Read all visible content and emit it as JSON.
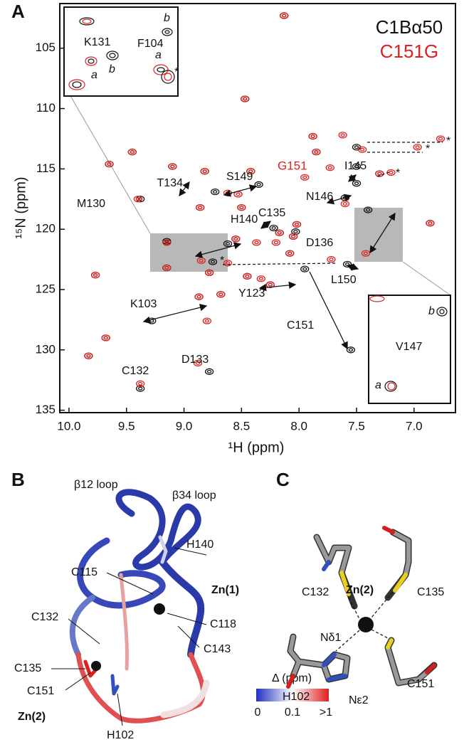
{
  "panels": {
    "a": "A",
    "b": "B",
    "c": "C"
  },
  "chart_data": {
    "type": "scatter",
    "xlabel": "¹H (ppm)",
    "ylabel": "¹⁵N (ppm)",
    "xlim": [
      10.08,
      6.64
    ],
    "ylim": [
      101.3,
      135.2
    ],
    "xticks": [
      {
        "value": 10,
        "label": "10.0"
      },
      9.5,
      {
        "value": 9,
        "label": "9.0"
      },
      8.5,
      {
        "value": 8,
        "label": "8.0"
      },
      7.5,
      {
        "value": 7,
        "label": "7.0"
      }
    ],
    "yticks": [
      105,
      110,
      115,
      120,
      125,
      130,
      135
    ],
    "series": [
      {
        "name": "C1Bα50",
        "color": "#111111",
        "x": [
          9.83,
          9.77,
          9.68,
          9.65,
          9.45,
          9.38,
          9.38,
          9.15,
          9.1,
          9.15,
          8.78,
          8.87,
          8.86,
          8.62,
          8.82,
          9.28,
          8.78,
          8.68,
          8.73,
          8.75,
          8.55,
          8.35,
          8.5,
          8.47,
          8.45,
          8.42,
          8.22,
          7.95,
          8.25,
          8.03,
          8.17,
          8.13,
          8.08,
          8.05,
          8.02,
          7.88,
          7.85,
          7.6,
          7.58,
          7.55,
          7.5,
          7.5,
          7.5,
          7.4,
          7.3,
          6.86
        ],
        "values": [
          130.5,
          123.8,
          129.0,
          114.6,
          113.6,
          117.5,
          133.2,
          121.0,
          114.8,
          123.2,
          131.8,
          125.6,
          118.2,
          121.2,
          115.2,
          127.6,
          123.6,
          125.4,
          116.9,
          122.7,
          120.8,
          116.3,
          118.2,
          109.2,
          123.9,
          115.2,
          119.9,
          123.3,
          124.6,
          120.2,
          120.3,
          102.3,
          122.0,
          120.6,
          119.6,
          112.3,
          113.6,
          117.4,
          122.9,
          130.0,
          113.2,
          114.8,
          116.2,
          118.4,
          115.4,
          119.5
        ]
      },
      {
        "name": "C151G",
        "color": "#e02020",
        "x": [
          9.83,
          9.77,
          9.68,
          9.65,
          9.45,
          9.4,
          9.38,
          9.15,
          9.1,
          9.15,
          8.88,
          8.87,
          8.86,
          8.85,
          8.82,
          8.8,
          8.78,
          8.68,
          8.62,
          8.62,
          8.55,
          8.53,
          8.5,
          8.47,
          8.45,
          8.42,
          8.37,
          8.33,
          8.25,
          8.2,
          8.17,
          8.13,
          8.08,
          8.05,
          8.02,
          7.95,
          7.88,
          7.85,
          7.73,
          7.72,
          7.62,
          7.6,
          7.45,
          7.42,
          7.3,
          7.2,
          6.97,
          6.86,
          6.77
        ],
        "values": [
          130.5,
          123.8,
          129.0,
          114.6,
          113.6,
          117.5,
          132.8,
          121.1,
          114.8,
          123.2,
          131.1,
          125.6,
          118.2,
          122.6,
          115.2,
          127.6,
          123.6,
          125.4,
          117.0,
          122.8,
          120.8,
          117.1,
          118.2,
          109.2,
          123.9,
          115.2,
          121.1,
          124.1,
          124.6,
          121.1,
          120.3,
          102.3,
          122.0,
          120.6,
          119.6,
          115.7,
          112.3,
          113.6,
          114.9,
          122.5,
          112.2,
          117.9,
          113.4,
          122.0,
          115.4,
          115.3,
          113.2,
          119.5,
          112.5
        ]
      }
    ],
    "annotations": [
      "T134",
      "S149",
      "G151",
      "I145",
      "M130",
      "N146",
      "H140",
      "C135",
      "D136",
      "L150",
      "Y123",
      "K103",
      "C151",
      "C132",
      "D133",
      "*",
      "*",
      "*",
      "*"
    ],
    "inset_top": [
      "K131",
      "a",
      "b",
      "a",
      "F104",
      "b",
      "*"
    ],
    "inset_bottom": [
      "b",
      "V147",
      "a"
    ]
  },
  "structure_b": {
    "labels": [
      "β12 loop",
      "β34 loop",
      "H140",
      "C115",
      "Zn(1)",
      "C132",
      "C118",
      "C143",
      "C135",
      "C151",
      "Zn(2)",
      "H102"
    ],
    "colorbar": {
      "title": "Δ (ppm)",
      "ticks": [
        "0",
        "0.1",
        ">1"
      ]
    }
  },
  "structure_c": {
    "labels": [
      "C132",
      "Zn(2)",
      "C135",
      "Nδ1",
      "H102",
      "Nε2",
      "C151"
    ]
  }
}
